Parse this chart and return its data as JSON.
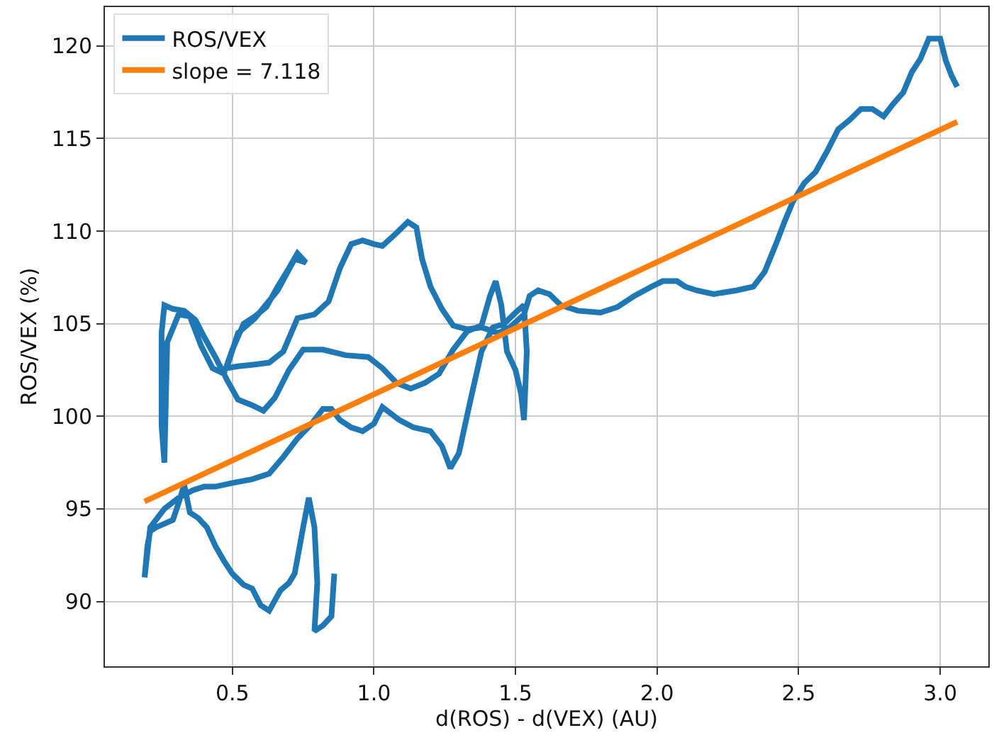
{
  "chart_data": {
    "type": "line",
    "xlabel": "d(ROS) - d(VEX) (AU)",
    "ylabel": "ROS/VEX (%)",
    "xlim": [
      0.05,
      3.17
    ],
    "ylim": [
      86.5,
      122.1
    ],
    "xticks": [
      {
        "value": 0.5,
        "label": "0.5"
      },
      {
        "value": 1.0,
        "label": "1.0"
      },
      {
        "value": 1.5,
        "label": "1.5"
      },
      {
        "value": 2.0,
        "label": "2.0"
      },
      {
        "value": 2.5,
        "label": "2.5"
      },
      {
        "value": 3.0,
        "label": "3.0"
      }
    ],
    "yticks": [
      90,
      95,
      100,
      105,
      110,
      115,
      120
    ],
    "grid": true,
    "legend": "top left",
    "series": [
      {
        "name": "ROS/VEX",
        "color": "#1f77b4",
        "x": [
          0.86,
          0.85,
          0.82,
          0.79,
          0.8,
          0.79,
          0.77,
          0.75,
          0.72,
          0.7,
          0.67,
          0.63,
          0.6,
          0.57,
          0.54,
          0.5,
          0.47,
          0.44,
          0.41,
          0.38,
          0.35,
          0.33,
          0.31,
          0.29,
          0.26,
          0.23,
          0.21,
          0.2,
          0.19,
          0.21,
          0.26,
          0.31,
          0.36,
          0.4,
          0.44,
          0.5,
          0.57,
          0.63,
          0.68,
          0.73,
          0.78,
          0.82,
          0.85,
          0.88,
          0.92,
          0.96,
          1.0,
          1.03,
          1.09,
          1.14,
          1.2,
          1.24,
          1.27,
          1.3,
          1.34,
          1.38,
          1.42,
          1.46,
          1.5,
          1.53,
          1.54,
          1.53,
          1.52,
          1.5,
          1.47,
          1.45,
          1.43,
          1.41,
          1.38,
          1.33,
          1.28,
          1.23,
          1.18,
          1.13,
          1.08,
          1.03,
          0.98,
          0.9,
          0.82,
          0.75,
          0.7,
          0.65,
          0.61,
          0.57,
          0.52,
          0.48,
          0.44,
          0.4,
          0.37,
          0.33,
          0.29,
          0.26,
          0.25,
          0.25,
          0.25,
          0.26,
          0.27,
          0.31,
          0.35,
          0.39,
          0.43,
          0.47,
          0.5,
          0.54,
          0.58,
          0.62,
          0.66,
          0.7,
          0.73,
          0.76,
          0.72,
          0.66,
          0.58,
          0.52,
          0.48,
          0.52,
          0.58,
          0.63,
          0.68,
          0.73,
          0.79,
          0.84,
          0.88,
          0.92,
          0.96,
          1.0,
          1.03,
          1.08,
          1.12,
          1.15,
          1.17,
          1.2,
          1.24,
          1.28,
          1.33,
          1.38,
          1.44,
          1.48,
          1.53,
          1.55,
          1.58,
          1.62,
          1.66,
          1.72,
          1.8,
          1.86,
          1.92,
          1.98,
          2.02,
          2.07,
          2.1,
          2.14,
          2.2,
          2.28,
          2.34,
          2.38,
          2.42,
          2.45,
          2.48,
          2.52,
          2.56,
          2.6,
          2.64,
          2.68,
          2.72,
          2.76,
          2.8,
          2.83,
          2.87,
          2.9,
          2.93,
          2.96,
          3.0,
          3.02,
          3.04,
          3.06
        ],
        "values": [
          91.5,
          89.2,
          88.7,
          88.4,
          91.0,
          94.0,
          95.6,
          94.0,
          91.5,
          91.0,
          90.6,
          89.5,
          89.8,
          90.7,
          90.9,
          91.5,
          92.2,
          93.0,
          94.0,
          94.5,
          94.8,
          96.3,
          95.3,
          94.4,
          94.2,
          94.0,
          93.8,
          93.0,
          91.3,
          94.0,
          95.0,
          95.6,
          96.0,
          96.2,
          96.2,
          96.4,
          96.6,
          96.9,
          97.8,
          98.8,
          99.6,
          100.4,
          100.4,
          99.8,
          99.4,
          99.2,
          99.6,
          100.5,
          99.8,
          99.4,
          99.2,
          98.4,
          97.2,
          98.0,
          100.8,
          103.5,
          104.8,
          105.0,
          105.6,
          106.0,
          103.5,
          99.8,
          101.2,
          102.5,
          103.5,
          106.0,
          107.3,
          106.5,
          104.9,
          104.6,
          103.6,
          102.3,
          101.8,
          101.5,
          101.8,
          102.6,
          103.2,
          103.3,
          103.6,
          103.6,
          102.5,
          101.0,
          100.3,
          100.6,
          100.9,
          102.0,
          103.2,
          104.3,
          105.2,
          105.7,
          105.8,
          106.0,
          104.5,
          102.0,
          99.5,
          97.5,
          104.0,
          105.5,
          105.4,
          103.8,
          102.6,
          102.3,
          103.6,
          105.0,
          105.4,
          105.9,
          107.0,
          108.0,
          108.8,
          108.3,
          108.5,
          106.8,
          105.3,
          104.5,
          102.6,
          102.7,
          102.8,
          102.9,
          103.5,
          105.3,
          105.5,
          106.2,
          108.0,
          109.3,
          109.5,
          109.3,
          109.2,
          109.9,
          110.5,
          110.2,
          108.5,
          107.0,
          105.8,
          104.9,
          104.7,
          104.8,
          104.5,
          104.8,
          105.5,
          106.5,
          106.8,
          106.6,
          106.0,
          105.7,
          105.6,
          105.9,
          106.5,
          107.0,
          107.3,
          107.3,
          107.0,
          106.8,
          106.6,
          106.8,
          107.0,
          107.8,
          109.3,
          110.5,
          111.6,
          112.6,
          113.2,
          114.3,
          115.5,
          116.0,
          116.6,
          116.6,
          116.2,
          116.8,
          117.5,
          118.6,
          119.3,
          120.4,
          120.4,
          119.2,
          118.4,
          117.8
        ]
      },
      {
        "name": "slope = 7.118",
        "color": "#ff7f0e",
        "x": [
          0.19,
          3.06
        ],
        "values": [
          95.4,
          115.9
        ]
      }
    ]
  }
}
